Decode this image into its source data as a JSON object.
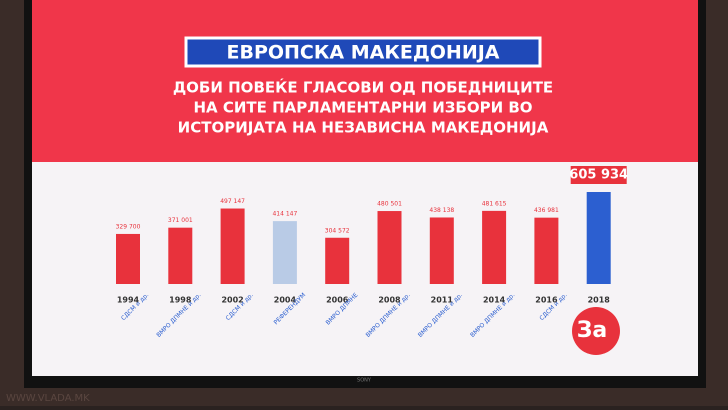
{
  "chart_data": {
    "type": "bar",
    "title": "ЕВРОПСКА МАКЕДОНИЈА",
    "subtitle": [
      "ДОБИ ПОВЕЌЕ ГЛАСОВИ ОД ПОБЕДНИЦИТЕ",
      "НА СИТЕ ПАРЛАМЕНТАРНИ ИЗБОРИ ВО",
      "ИСТОРИЈАТА НА НЕЗАВИСНА МАКЕДОНИЈА"
    ],
    "categories": [
      "1994",
      "1998",
      "2002",
      "2004",
      "2006",
      "2008",
      "2011",
      "2014",
      "2016",
      "2018"
    ],
    "parties": [
      "СДСМ и др.",
      "ВМРО ДПМНЕ и др.",
      "СДСМ и др.",
      "РЕФЕРЕНДУМ",
      "ВМРО ДПМНЕ",
      "ВМРО ДПМНЕ и др.",
      "ВМРО ДПМНЕ и др.",
      "ВМРО ДПМНЕ и др.",
      "СДСМ и др.",
      null
    ],
    "values": [
      329700,
      371001,
      497147,
      414147,
      304572,
      480501,
      438138,
      481615,
      436981,
      605934
    ],
    "value_labels": [
      "329 700",
      "371 001",
      "497 147",
      "414 147",
      "304 572",
      "480 501",
      "438 138",
      "481 615",
      "436 981",
      "605 934"
    ],
    "colors": [
      "#e8323c",
      "#e8323c",
      "#e8323c",
      "#b9cbe6",
      "#e8323c",
      "#e8323c",
      "#e8323c",
      "#e8323c",
      "#e8323c",
      "#2c5fd0"
    ]
  },
  "logo": "За",
  "brand": "SONY",
  "watermark": "WWW.VLADA.MK"
}
